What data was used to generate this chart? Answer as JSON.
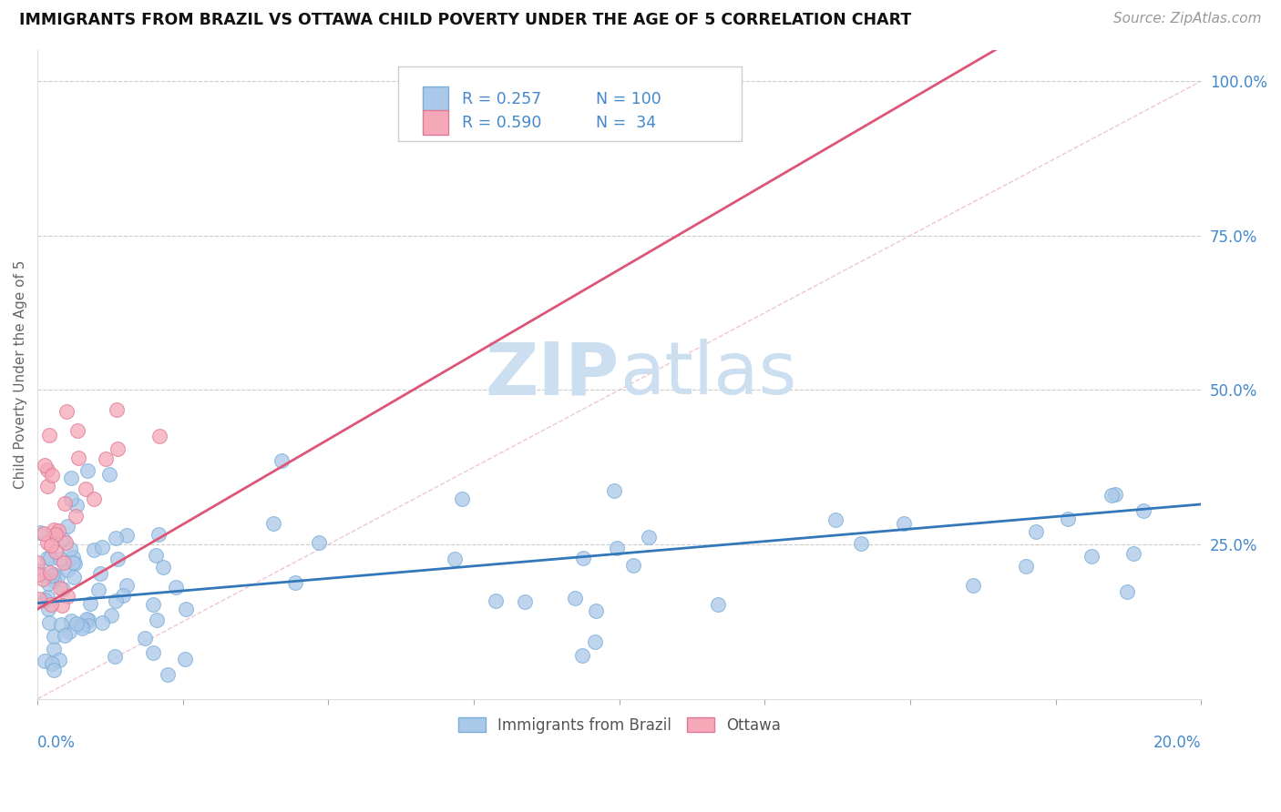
{
  "title": "IMMIGRANTS FROM BRAZIL VS OTTAWA CHILD POVERTY UNDER THE AGE OF 5 CORRELATION CHART",
  "source": "Source: ZipAtlas.com",
  "ylabel": "Child Poverty Under the Age of 5",
  "legend_label1": "Immigrants from Brazil",
  "legend_label2": "Ottawa",
  "R1": 0.257,
  "N1": 100,
  "R2": 0.59,
  "N2": 34,
  "color_blue": "#aac8e8",
  "color_pink": "#f5a8b8",
  "color_blue_edge": "#7aadd8",
  "color_pink_edge": "#e07898",
  "color_blue_text": "#4488cc",
  "color_line_blue": "#3377bb",
  "color_line_pink": "#dd5577",
  "color_diag": "#e8b8c8",
  "watermark_color": "#ccdff0",
  "xlim": [
    0.0,
    0.2
  ],
  "ylim": [
    0.0,
    1.05
  ],
  "yticks": [
    0.25,
    0.5,
    0.75,
    1.0
  ],
  "ytick_labels": [
    "25.0%",
    "50.0%",
    "75.0%",
    "100.0%"
  ]
}
